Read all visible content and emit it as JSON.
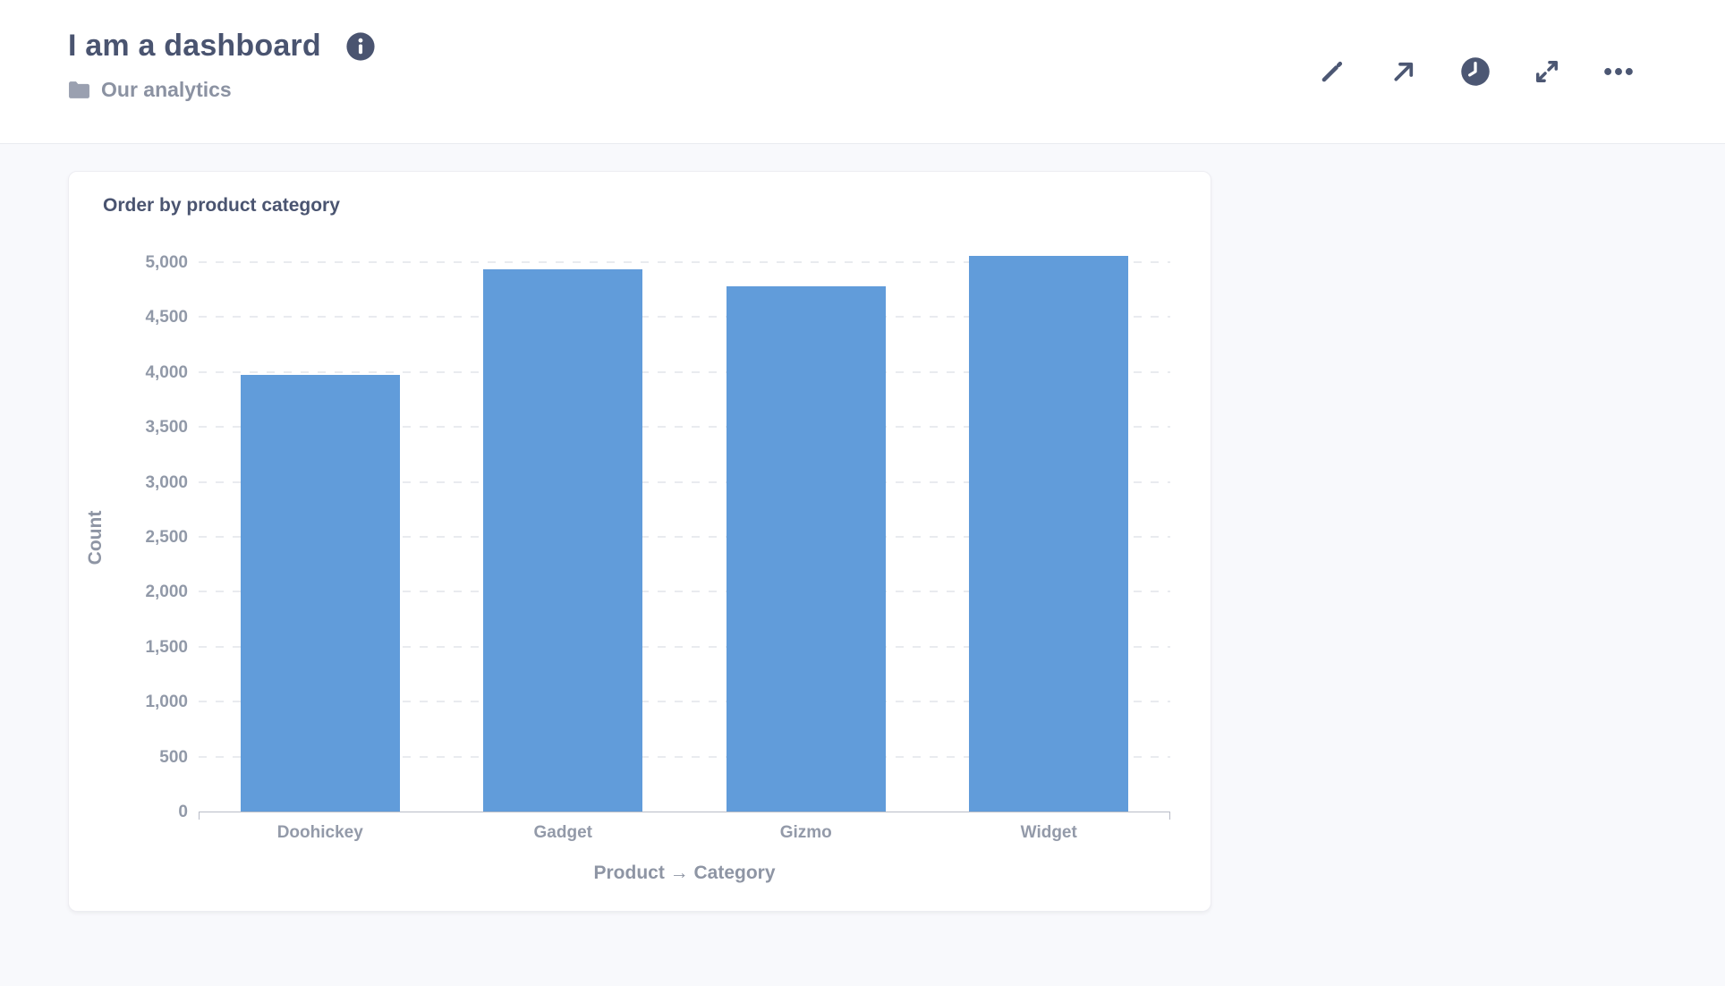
{
  "header": {
    "title": "I am a dashboard",
    "info_icon": "info-icon",
    "breadcrumb": {
      "label": "Our analytics",
      "icon": "folder-icon"
    },
    "toolbar_icons": [
      "pencil-icon",
      "arrow-up-right-icon",
      "clock-icon",
      "fullscreen-expand-icon",
      "ellipsis-icon"
    ]
  },
  "card": {
    "title": "Order by product category"
  },
  "chart_data": {
    "type": "bar",
    "title": "Order by product category",
    "categories": [
      "Doohickey",
      "Gadget",
      "Gizmo",
      "Widget"
    ],
    "values": [
      3976,
      4939,
      4784,
      5061
    ],
    "xlabel": "Product → Category",
    "ylabel": "Count",
    "ylim": [
      0,
      5200
    ],
    "ytick_interval": 500,
    "ytick_labels": [
      "0",
      "500",
      "1,000",
      "1,500",
      "2,000",
      "2,500",
      "3,000",
      "3,500",
      "4,000",
      "4,500",
      "5,000"
    ],
    "grid": "horizontal dashed",
    "legend": "none",
    "bar_color": "#619cda"
  },
  "colors": {
    "accent_blue": "#619cda",
    "text_dark": "#4a5470",
    "text_gray": "#9199a8",
    "page_bg": "#f8f9fc",
    "card_bg": "#ffffff",
    "axis_line": "#b8bcc7",
    "gridline": "#e9ebef"
  }
}
